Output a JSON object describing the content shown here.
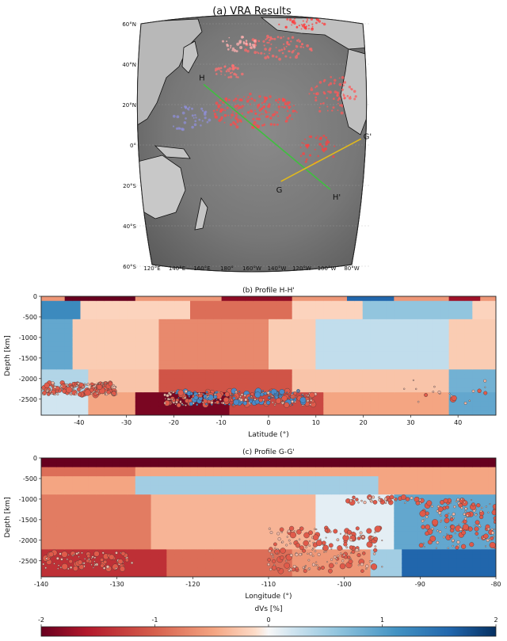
{
  "chart_data": [
    {
      "type": "map",
      "title": "(a) VRA Results",
      "lat_labels": [
        "60°N",
        "40°N",
        "20°N",
        "0°",
        "20°S",
        "40°S",
        "60°S"
      ],
      "lon_labels": [
        "120°E",
        "140°E",
        "160°E",
        "180°",
        "160°W",
        "140°W",
        "120°W",
        "100°W",
        "80°W"
      ],
      "profiles": [
        {
          "name": "H-H'",
          "start_label": "H",
          "end_label": "H'",
          "color": "#3fbf3f",
          "start": {
            "lat": 30,
            "lon": 162
          },
          "end": {
            "lat": -22,
            "lon": -103
          }
        },
        {
          "name": "G-G'",
          "start_label": "G",
          "end_label": "G'",
          "color": "#e2b91b",
          "start": {
            "lat": -18,
            "lon": -140
          },
          "end": {
            "lat": 3,
            "lon": -80
          }
        }
      ]
    },
    {
      "type": "heatmap",
      "title": "(b) Profile H-H'",
      "xlabel": "Latitude (°)",
      "ylabel": "Depth [km]",
      "xlim": [
        -48,
        48
      ],
      "ylim": [
        -2890,
        0
      ],
      "xticks": [
        -40,
        -30,
        -20,
        -10,
        0,
        10,
        20,
        30,
        40
      ],
      "yticks": [
        0,
        -500,
        -1000,
        -1500,
        -2000,
        -2500
      ],
      "event_clusters": [
        {
          "x_range": [
            -48,
            -32
          ],
          "depth_range": [
            -2100,
            -2400
          ],
          "count": 180
        },
        {
          "x_range": [
            -22,
            10
          ],
          "depth_range": [
            -2300,
            -2650
          ],
          "count": 320
        },
        {
          "x_range": [
            28,
            46
          ],
          "depth_range": [
            -2000,
            -2600
          ],
          "count": 20
        }
      ]
    },
    {
      "type": "heatmap",
      "title": "(c) Profile G-G'",
      "xlabel": "Longitude (°)",
      "ylabel": "Depth [km]",
      "xlim": [
        -140,
        -80
      ],
      "ylim": [
        -2890,
        0
      ],
      "xticks": [
        -140,
        -130,
        -120,
        -110,
        -100,
        -90,
        -80
      ],
      "yticks": [
        0,
        -500,
        -1000,
        -1500,
        -2000,
        -2500
      ],
      "event_clusters": [
        {
          "x_range": [
            -140,
            -128
          ],
          "depth_range": [
            -2300,
            -2700
          ],
          "count": 90
        },
        {
          "x_range": [
            -110,
            -95
          ],
          "depth_range": [
            -1700,
            -2750
          ],
          "count": 200
        },
        {
          "x_range": [
            -100,
            -90
          ],
          "depth_range": [
            -950,
            -1100
          ],
          "count": 40
        },
        {
          "x_range": [
            -90,
            -80
          ],
          "depth_range": [
            -1000,
            -2200
          ],
          "count": 150
        }
      ]
    },
    {
      "type": "colorbar",
      "label": "dVs [%]",
      "range": [
        -2,
        2
      ],
      "ticks": [
        -2,
        -1,
        0,
        1,
        2
      ],
      "colormap": "RdBu"
    }
  ]
}
